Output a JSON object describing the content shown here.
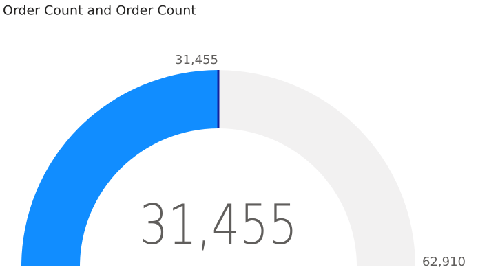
{
  "chart_data": {
    "type": "gauge",
    "title": "Order Count and Order Count",
    "values": [
      31455
    ],
    "value_labels": [
      "31,455"
    ],
    "color": "#118dff",
    "target": 31455,
    "target_label": "31,455",
    "target_color": "#12239e",
    "track_color": "#f2f1f1",
    "ylim": [
      0,
      62910
    ],
    "yticks": [
      {
        "value": 62910,
        "label": "62,910"
      }
    ]
  }
}
